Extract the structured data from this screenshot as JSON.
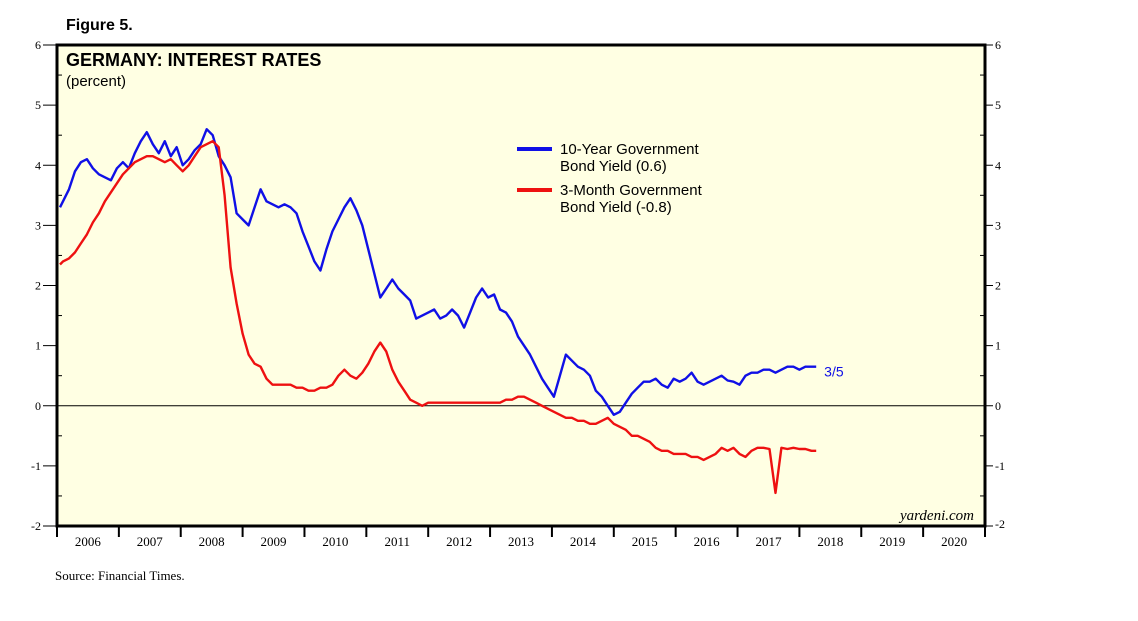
{
  "figure_label": "Figure 5.",
  "source_note": "Source: Financial Times.",
  "watermark": "yardeni.com",
  "last_point_label": "3/5",
  "chart_data": {
    "type": "line",
    "title": "GERMANY: INTEREST RATES",
    "subtitle": "(percent)",
    "xlabel": "",
    "ylabel": "",
    "xlim": [
      2005.5,
      2021.0
    ],
    "ylim": [
      -2,
      6
    ],
    "y_ticks": [
      6,
      5,
      4,
      3,
      2,
      1,
      0,
      -1,
      -2
    ],
    "y_tick_labels": [
      "6",
      "5",
      "4",
      "3",
      "2",
      "1",
      "0",
      "-1",
      "-2"
    ],
    "x_tick_labels": [
      "2006",
      "2007",
      "2008",
      "2009",
      "2010",
      "2011",
      "2012",
      "2013",
      "2014",
      "2015",
      "2016",
      "2017",
      "2018",
      "2019",
      "2020"
    ],
    "zero_line": true,
    "grid": false,
    "legend_position": "top-center",
    "series": [
      {
        "name": "10-Year Government Bond Yield (0.6)",
        "legend_line1": "10-Year Government",
        "legend_line2": "Bond Yield (0.6)",
        "color": "#1010e6",
        "x": [
          2005.55,
          2005.6,
          2005.7,
          2005.8,
          2005.9,
          2006.0,
          2006.1,
          2006.2,
          2006.3,
          2006.4,
          2006.5,
          2006.6,
          2006.7,
          2006.8,
          2006.9,
          2007.0,
          2007.1,
          2007.2,
          2007.3,
          2007.4,
          2007.5,
          2007.6,
          2007.7,
          2007.8,
          2007.9,
          2008.0,
          2008.1,
          2008.2,
          2008.3,
          2008.4,
          2008.5,
          2008.6,
          2008.7,
          2008.8,
          2008.9,
          2009.0,
          2009.1,
          2009.2,
          2009.3,
          2009.4,
          2009.5,
          2009.6,
          2009.7,
          2009.8,
          2009.9,
          2010.0,
          2010.1,
          2010.2,
          2010.3,
          2010.4,
          2010.5,
          2010.6,
          2010.7,
          2010.8,
          2010.9,
          2011.0,
          2011.1,
          2011.2,
          2011.3,
          2011.4,
          2011.5,
          2011.6,
          2011.7,
          2011.8,
          2011.9,
          2012.0,
          2012.1,
          2012.2,
          2012.3,
          2012.4,
          2012.5,
          2012.6,
          2012.7,
          2012.8,
          2012.9,
          2013.0,
          2013.1,
          2013.2,
          2013.3,
          2013.4,
          2013.5,
          2013.6,
          2013.7,
          2013.8,
          2013.9,
          2014.0,
          2014.1,
          2014.2,
          2014.3,
          2014.4,
          2014.5,
          2014.6,
          2014.7,
          2014.8,
          2014.9,
          2015.0,
          2015.1,
          2015.2,
          2015.3,
          2015.4,
          2015.5,
          2015.6,
          2015.7,
          2015.8,
          2015.9,
          2016.0,
          2016.1,
          2016.2,
          2016.3,
          2016.4,
          2016.5,
          2016.6,
          2016.7,
          2016.8,
          2016.9,
          2017.0,
          2017.1,
          2017.2,
          2017.3,
          2017.4,
          2017.5,
          2017.6,
          2017.7,
          2017.8,
          2017.9,
          2018.0,
          2018.1,
          2018.18
        ],
        "values": [
          3.3,
          3.4,
          3.6,
          3.9,
          4.05,
          4.1,
          3.95,
          3.85,
          3.8,
          3.75,
          3.95,
          4.05,
          3.95,
          4.2,
          4.4,
          4.55,
          4.35,
          4.2,
          4.4,
          4.15,
          4.3,
          4.0,
          4.1,
          4.25,
          4.35,
          4.6,
          4.5,
          4.15,
          4.0,
          3.8,
          3.2,
          3.1,
          3.0,
          3.3,
          3.6,
          3.4,
          3.35,
          3.3,
          3.35,
          3.3,
          3.2,
          2.9,
          2.65,
          2.4,
          2.25,
          2.6,
          2.9,
          3.1,
          3.3,
          3.45,
          3.25,
          3.0,
          2.6,
          2.2,
          1.8,
          1.95,
          2.1,
          1.95,
          1.85,
          1.75,
          1.45,
          1.5,
          1.55,
          1.6,
          1.45,
          1.5,
          1.6,
          1.5,
          1.3,
          1.55,
          1.8,
          1.95,
          1.8,
          1.85,
          1.6,
          1.55,
          1.4,
          1.15,
          1.0,
          0.85,
          0.65,
          0.45,
          0.3,
          0.15,
          0.5,
          0.85,
          0.75,
          0.65,
          0.6,
          0.5,
          0.25,
          0.15,
          0.0,
          -0.15,
          -0.1,
          0.05,
          0.2,
          0.3,
          0.4,
          0.4,
          0.45,
          0.35,
          0.3,
          0.45,
          0.4,
          0.45,
          0.55,
          0.4,
          0.35,
          0.4,
          0.45,
          0.5,
          0.42,
          0.4,
          0.35,
          0.5,
          0.55,
          0.55,
          0.6,
          0.6,
          0.55,
          0.6,
          0.65,
          0.65,
          0.6,
          0.65,
          0.65,
          0.65
        ]
      },
      {
        "name": "3-Month Government Bond Yield (-0.8)",
        "legend_line1": "3-Month Government",
        "legend_line2": "Bond Yield (-0.8)",
        "color": "#ee1111",
        "x": [
          2005.55,
          2005.6,
          2005.7,
          2005.8,
          2005.9,
          2006.0,
          2006.1,
          2006.2,
          2006.3,
          2006.4,
          2006.5,
          2006.6,
          2006.7,
          2006.8,
          2006.9,
          2007.0,
          2007.1,
          2007.2,
          2007.3,
          2007.4,
          2007.5,
          2007.6,
          2007.7,
          2007.8,
          2007.9,
          2008.0,
          2008.1,
          2008.2,
          2008.3,
          2008.4,
          2008.5,
          2008.6,
          2008.7,
          2008.8,
          2008.9,
          2009.0,
          2009.1,
          2009.2,
          2009.3,
          2009.4,
          2009.5,
          2009.6,
          2009.7,
          2009.8,
          2009.9,
          2010.0,
          2010.1,
          2010.2,
          2010.3,
          2010.4,
          2010.5,
          2010.6,
          2010.7,
          2010.8,
          2010.9,
          2011.0,
          2011.1,
          2011.2,
          2011.3,
          2011.4,
          2011.5,
          2011.6,
          2011.7,
          2011.8,
          2011.9,
          2012.0,
          2012.1,
          2012.2,
          2012.3,
          2012.4,
          2012.5,
          2012.6,
          2012.7,
          2012.8,
          2012.9,
          2013.0,
          2013.1,
          2013.2,
          2013.3,
          2013.4,
          2013.5,
          2013.6,
          2013.7,
          2013.8,
          2013.9,
          2014.0,
          2014.1,
          2014.2,
          2014.3,
          2014.4,
          2014.5,
          2014.6,
          2014.7,
          2014.8,
          2014.9,
          2015.0,
          2015.1,
          2015.2,
          2015.3,
          2015.4,
          2015.5,
          2015.6,
          2015.7,
          2015.8,
          2015.9,
          2016.0,
          2016.1,
          2016.2,
          2016.3,
          2016.4,
          2016.5,
          2016.6,
          2016.7,
          2016.8,
          2016.9,
          2017.0,
          2017.1,
          2017.2,
          2017.3,
          2017.4,
          2017.5,
          2017.6,
          2017.7,
          2017.8,
          2017.9,
          2018.0,
          2018.1,
          2018.18
        ],
        "values": [
          2.35,
          2.4,
          2.45,
          2.55,
          2.7,
          2.85,
          3.05,
          3.2,
          3.4,
          3.55,
          3.7,
          3.85,
          3.95,
          4.05,
          4.1,
          4.15,
          4.15,
          4.1,
          4.05,
          4.1,
          4.0,
          3.9,
          4.0,
          4.15,
          4.3,
          4.35,
          4.4,
          4.3,
          3.5,
          2.3,
          1.7,
          1.2,
          0.85,
          0.7,
          0.65,
          0.45,
          0.35,
          0.35,
          0.35,
          0.35,
          0.3,
          0.3,
          0.25,
          0.25,
          0.3,
          0.3,
          0.35,
          0.5,
          0.6,
          0.5,
          0.45,
          0.55,
          0.7,
          0.9,
          1.05,
          0.9,
          0.6,
          0.4,
          0.25,
          0.1,
          0.05,
          0.0,
          0.05,
          0.05,
          0.05,
          0.05,
          0.05,
          0.05,
          0.05,
          0.05,
          0.05,
          0.05,
          0.05,
          0.05,
          0.05,
          0.1,
          0.1,
          0.15,
          0.15,
          0.1,
          0.05,
          0.0,
          -0.05,
          -0.1,
          -0.15,
          -0.2,
          -0.2,
          -0.25,
          -0.25,
          -0.3,
          -0.3,
          -0.25,
          -0.2,
          -0.3,
          -0.35,
          -0.4,
          -0.5,
          -0.5,
          -0.55,
          -0.6,
          -0.7,
          -0.75,
          -0.75,
          -0.8,
          -0.8,
          -0.8,
          -0.85,
          -0.85,
          -0.9,
          -0.85,
          -0.8,
          -0.7,
          -0.75,
          -0.7,
          -0.8,
          -0.85,
          -0.75,
          -0.7,
          -0.7,
          -0.72,
          -1.45,
          -0.7,
          -0.72,
          -0.7,
          -0.72,
          -0.72,
          -0.75,
          -0.75
        ]
      }
    ]
  }
}
